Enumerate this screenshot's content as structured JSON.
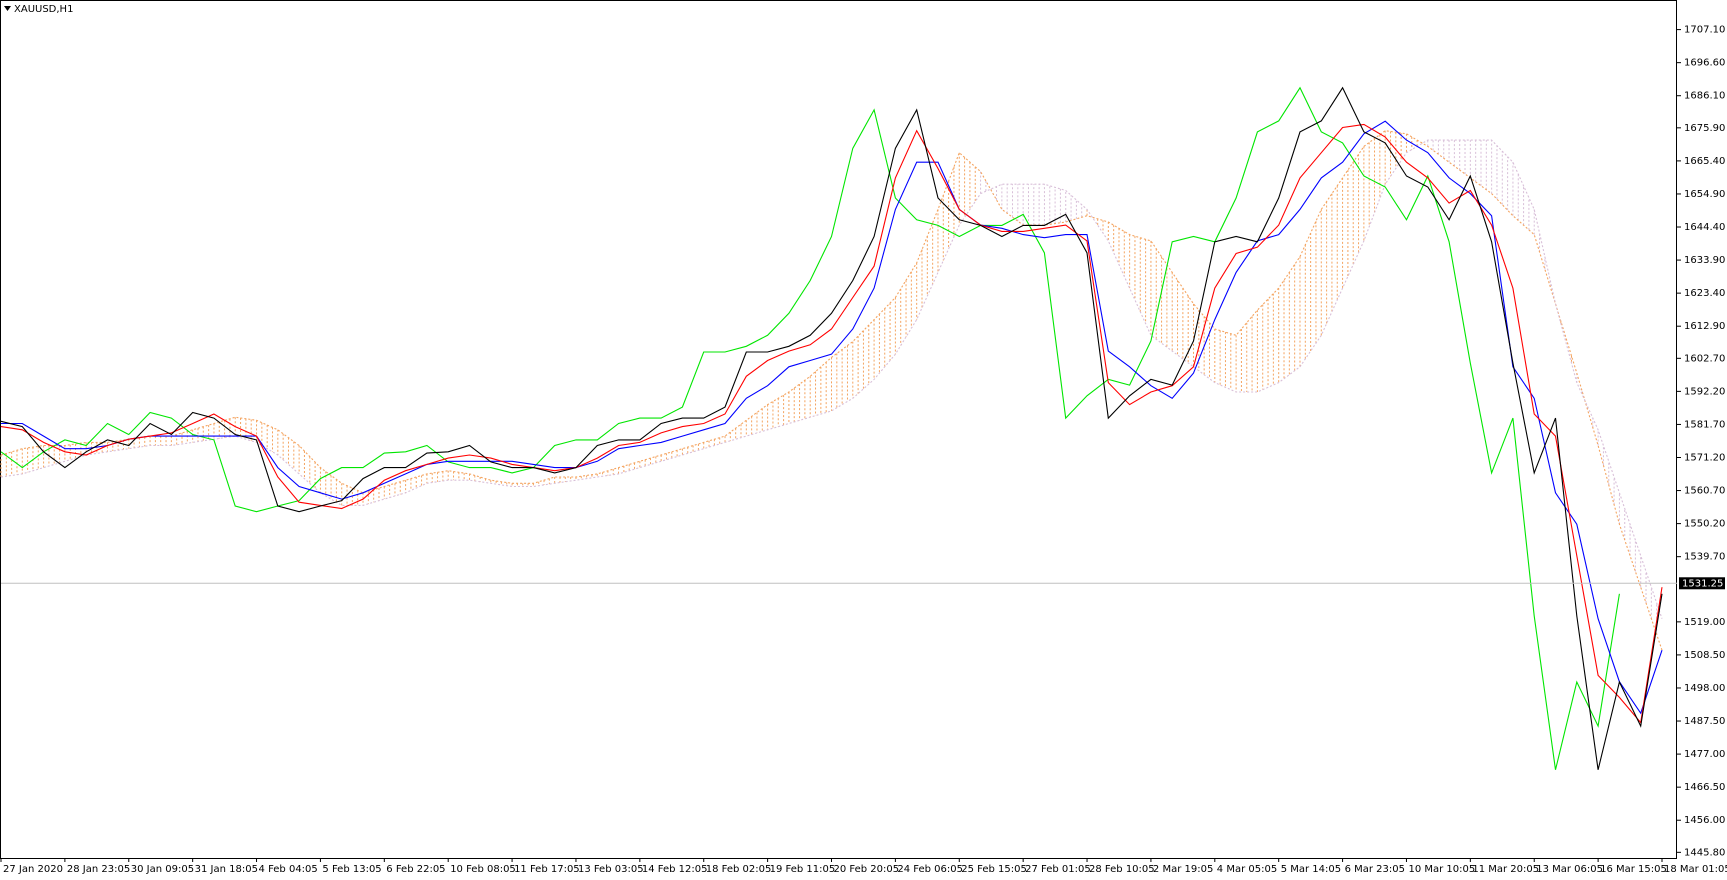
{
  "chart_data": {
    "type": "line",
    "title": "XAUUSD,H1",
    "categories": [
      "27 Jan 2020",
      null,
      null,
      "28 Jan 23:05",
      null,
      null,
      "30 Jan 09:05",
      null,
      null,
      "31 Jan 18:05",
      null,
      null,
      "4 Feb 04:05",
      null,
      null,
      "5 Feb 13:05",
      null,
      null,
      "6 Feb 22:05",
      null,
      null,
      "10 Feb 08:05",
      null,
      null,
      "11 Feb 17:05",
      null,
      null,
      "13 Feb 03:05",
      null,
      null,
      "14 Feb 12:05",
      null,
      null,
      "18 Feb 02:05",
      null,
      null,
      "19 Feb 11:05",
      null,
      null,
      "20 Feb 20:05",
      null,
      null,
      "24 Feb 06:05",
      null,
      null,
      "25 Feb 15:05",
      null,
      null,
      "27 Feb 01:05",
      null,
      null,
      "28 Feb 10:05",
      null,
      null,
      "2 Mar 19:05",
      null,
      null,
      "4 Mar 05:05",
      null,
      null,
      "5 Mar 14:05",
      null,
      null,
      "6 Mar 23:05",
      null,
      null,
      "10 Mar 10:05",
      null,
      null,
      "11 Mar 20:05",
      null,
      null,
      "13 Mar 06:05",
      null,
      null,
      "16 Mar 15:05",
      null,
      null,
      "18 Mar 01:05"
    ],
    "series": [
      {
        "color": "#f4a460",
        "style": "dotted",
        "values": [
          1572,
          1574,
          1575,
          1575,
          1576,
          1576,
          1577,
          1578,
          1578,
          1580,
          1582,
          1584,
          1583,
          1580,
          1575,
          1568,
          1563,
          1560,
          1562,
          1564,
          1566,
          1567,
          1566,
          1564,
          1563,
          1563,
          1565,
          1565,
          1566,
          1568,
          1570,
          1572,
          1574,
          1576,
          1578,
          1583,
          1588,
          1592,
          1597,
          1603,
          1608,
          1615,
          1622,
          1633,
          1650,
          1668,
          1662,
          1650,
          1645,
          1645,
          1646,
          1648,
          1646,
          1642,
          1640,
          1630,
          1620,
          1612,
          1610,
          1618,
          1625,
          1635,
          1650,
          1660,
          1670,
          1675,
          1674,
          1670,
          1665,
          1660,
          1655,
          1648,
          1642,
          1620,
          1598,
          1575,
          1550,
          1530,
          1510
        ]
      },
      {
        "color": "#d8bfd8",
        "style": "dotted",
        "values": [
          1565,
          1566,
          1568,
          1570,
          1572,
          1573,
          1574,
          1575,
          1575,
          1576,
          1577,
          1578,
          1576,
          1572,
          1566,
          1560,
          1556,
          1556,
          1558,
          1560,
          1563,
          1564,
          1564,
          1563,
          1562,
          1562,
          1563,
          1564,
          1565,
          1566,
          1568,
          1570,
          1572,
          1574,
          1576,
          1578,
          1580,
          1582,
          1584,
          1586,
          1590,
          1596,
          1604,
          1615,
          1630,
          1645,
          1655,
          1658,
          1658,
          1658,
          1656,
          1650,
          1640,
          1625,
          1610,
          1605,
          1600,
          1595,
          1592,
          1592,
          1595,
          1600,
          1610,
          1625,
          1640,
          1658,
          1668,
          1672,
          1672,
          1672,
          1672,
          1665,
          1650,
          1620,
          1595,
          1580,
          1560,
          1540,
          1520
        ]
      },
      {
        "color": "#00e600",
        "style": "solid",
        "values": [
          1573,
          1568,
          1573,
          1576.8,
          1575,
          1582,
          1578.5,
          1585.5,
          1583.7,
          1578.5,
          1576.8,
          1555.8,
          1554,
          1555.8,
          1557.5,
          1564.5,
          1568,
          1568,
          1572.6,
          1573,
          1575,
          1569.8,
          1568,
          1568,
          1566.3,
          1568,
          1575,
          1576.8,
          1576.8,
          1582,
          1583.7,
          1583.7,
          1587.2,
          1604.7,
          1604.7,
          1606.5,
          1610,
          1617,
          1627.4,
          1641.4,
          1669.4,
          1681.6,
          1653.6,
          1646.7,
          1644.9,
          1641.4,
          1644.9,
          1644.9,
          1648.4,
          1636.2,
          1583.7,
          1590.8,
          1596,
          1594.2,
          1608.2,
          1639.7,
          1641.4,
          1639.7,
          1653.6,
          1674.6,
          1678.1,
          1688.6,
          1674.6,
          1671.1,
          1660.6,
          1657.1,
          1646.7,
          1660.6,
          1639.7,
          1601.2,
          1566.3,
          1583.7,
          1520.9,
          1472,
          1499.9,
          1485.9,
          1527.9,
          null,
          null
        ]
      },
      {
        "color": "#0000ff",
        "style": "solid",
        "values": [
          1582,
          1582,
          1578,
          1574,
          1574,
          1575,
          1577,
          1578,
          1578,
          1578,
          1578,
          1578,
          1578,
          1568,
          1562,
          1560,
          1558,
          1560,
          1563,
          1566,
          1569,
          1570,
          1570,
          1570,
          1570,
          1569,
          1568,
          1568,
          1570,
          1574,
          1575,
          1576,
          1578,
          1580,
          1582,
          1590,
          1594,
          1600,
          1602,
          1604,
          1612,
          1625,
          1650,
          1665,
          1665,
          1650,
          1645,
          1644,
          1642,
          1641,
          1642,
          1642,
          1605,
          1600,
          1594,
          1590,
          1598,
          1615,
          1630,
          1640,
          1642,
          1650,
          1660,
          1665,
          1674,
          1678,
          1672,
          1668,
          1660,
          1655,
          1648,
          1600,
          1590,
          1560,
          1550,
          1520,
          1500,
          1490,
          1510
        ]
      },
      {
        "color": "#ff0000",
        "style": "solid",
        "values": [
          1581,
          1580,
          1576,
          1573,
          1572,
          1575,
          1577,
          1578,
          1579,
          1582,
          1585,
          1581,
          1578,
          1565,
          1557,
          1556,
          1555,
          1558,
          1564,
          1567,
          1569,
          1571,
          1572,
          1571,
          1569,
          1568,
          1567,
          1568,
          1571,
          1575,
          1576,
          1579,
          1581,
          1582,
          1585,
          1597,
          1602,
          1605,
          1607,
          1612,
          1622,
          1632,
          1660,
          1675,
          1663,
          1650,
          1645,
          1643,
          1643,
          1644,
          1645,
          1640,
          1595,
          1588,
          1592,
          1594,
          1600,
          1625,
          1636,
          1638,
          1645,
          1660,
          1668,
          1676,
          1677,
          1673,
          1665,
          1660,
          1652,
          1656,
          1645,
          1625,
          1585,
          1578,
          1540,
          1502,
          1495,
          1487,
          1530
        ]
      },
      {
        "color": "#000000",
        "style": "solid",
        "values": [
          1582.7,
          1581,
          1573,
          1568,
          1573,
          1576.8,
          1575,
          1582,
          1578.5,
          1585.5,
          1583.7,
          1578.5,
          1576.8,
          1555.8,
          1554,
          1555.8,
          1557.5,
          1564.5,
          1568,
          1568,
          1572.6,
          1573,
          1575,
          1569.8,
          1568,
          1568,
          1566.3,
          1568,
          1575,
          1576.8,
          1576.8,
          1582,
          1583.7,
          1583.7,
          1587.2,
          1604.7,
          1604.7,
          1606.5,
          1610,
          1617,
          1627.4,
          1641.4,
          1669.4,
          1681.6,
          1653.6,
          1646.7,
          1644.9,
          1641.4,
          1644.9,
          1644.9,
          1648.4,
          1636.2,
          1583.7,
          1590.8,
          1596,
          1594.2,
          1608.2,
          1639.7,
          1641.4,
          1639.7,
          1653.6,
          1674.6,
          1678.1,
          1688.6,
          1674.6,
          1671.1,
          1660.6,
          1657.1,
          1646.7,
          1660.6,
          1639.7,
          1601.2,
          1566.3,
          1583.7,
          1520.9,
          1472,
          1499.9,
          1485.9,
          1527.9
        ]
      }
    ],
    "current_price": 1531.25,
    "ylim": [
      1444.0,
      1716.5
    ],
    "yticks": [
      {
        "value": 1707.1,
        "label": "1707.10"
      },
      {
        "value": 1696.6,
        "label": "1696.60"
      },
      {
        "value": 1686.1,
        "label": "1686.10"
      },
      {
        "value": 1675.9,
        "label": "1675.90"
      },
      {
        "value": 1665.4,
        "label": "1665.40"
      },
      {
        "value": 1654.9,
        "label": "1654.90"
      },
      {
        "value": 1644.4,
        "label": "1644.40"
      },
      {
        "value": 1633.9,
        "label": "1633.90"
      },
      {
        "value": 1623.4,
        "label": "1623.40"
      },
      {
        "value": 1612.9,
        "label": "1612.90"
      },
      {
        "value": 1602.7,
        "label": "1602.70"
      },
      {
        "value": 1592.2,
        "label": "1592.20"
      },
      {
        "value": 1581.7,
        "label": "1581.70"
      },
      {
        "value": 1571.2,
        "label": "1571.20"
      },
      {
        "value": 1560.7,
        "label": "1560.70"
      },
      {
        "value": 1550.2,
        "label": "1550.20"
      },
      {
        "value": 1539.7,
        "label": "1539.70"
      },
      {
        "value": 1519,
        "label": "1519.00"
      },
      {
        "value": 1508.5,
        "label": "1508.50"
      },
      {
        "value": 1498,
        "label": "1498.00"
      },
      {
        "value": 1487.5,
        "label": "1487.50"
      },
      {
        "value": 1477,
        "label": "1477.00"
      },
      {
        "value": 1466.5,
        "label": "1466.50"
      },
      {
        "value": 1456,
        "label": "1456.00"
      },
      {
        "value": 1445.8,
        "label": "1445.80"
      }
    ],
    "grid": false
  }
}
